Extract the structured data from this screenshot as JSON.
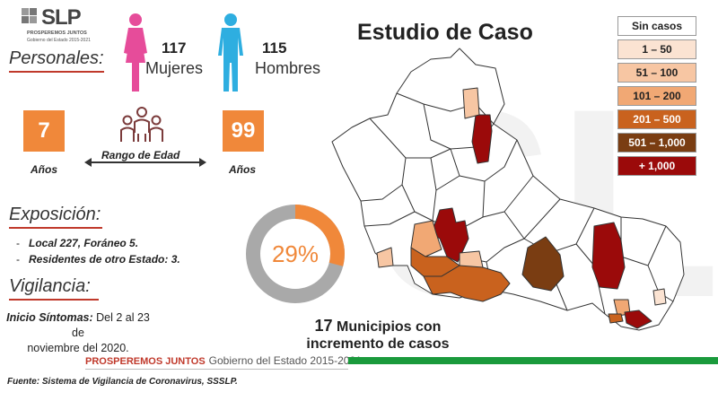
{
  "brand": {
    "name": "SLP",
    "tagline": "PROSPEREMOS JUNTOS",
    "subline": "Gobierno del Estado 2015-2021"
  },
  "title": "Estudio de Caso",
  "personales": {
    "heading": "Personales:",
    "mujeres": {
      "count": "117",
      "label": "Mujeres"
    },
    "hombres": {
      "count": "115",
      "label": "Hombres"
    }
  },
  "edad": {
    "min": "7",
    "max": "99",
    "min_label": "Años",
    "max_label": "Años",
    "range_label": "Rango de Edad"
  },
  "exposicion": {
    "heading": "Exposición:",
    "items": [
      "Local  227, Foráneo 5.",
      "Residentes de otro Estado: 3."
    ]
  },
  "vigilancia": {
    "heading": "Vigilancia:",
    "label": "Inicio Síntomas:",
    "text1": " Del 2 al 23 de",
    "text2": "noviembre del 2020."
  },
  "donut": {
    "percent_label": "29%",
    "value": 0.29
  },
  "municipios": {
    "count": "17",
    "text1": " Municipios con",
    "text2": "incremento de casos"
  },
  "legend": [
    {
      "label": "Sin casos",
      "color": "#ffffff",
      "text_color": "#222222"
    },
    {
      "label": "1 – 50",
      "color": "#fbe3d2",
      "text_color": "#222222"
    },
    {
      "label": "51 – 100",
      "color": "#f7c6a3",
      "text_color": "#222222"
    },
    {
      "label": "101 – 200",
      "color": "#f1a874",
      "text_color": "#222222"
    },
    {
      "label": "201 – 500",
      "color": "#c9621e",
      "text_color": "#ffffff"
    },
    {
      "label": "501 – 1,000",
      "color": "#7a3d12",
      "text_color": "#ffffff"
    },
    {
      "label": "+ 1,000",
      "color": "#9b0a0a",
      "text_color": "#ffffff"
    }
  ],
  "footer": {
    "brand": "PROSPEREMOS JUNTOS",
    "gov": "Gobierno del Estado 2015-2021",
    "source": "Fuente: Sistema de Vigilancia de Coronavirus, SSSLP."
  },
  "colors": {
    "accent_orange": "#f0883a",
    "female_pink": "#e64c9a",
    "male_blue": "#2eaee0",
    "footer_green": "#1a9a3c",
    "brand_red": "#c0392b"
  }
}
